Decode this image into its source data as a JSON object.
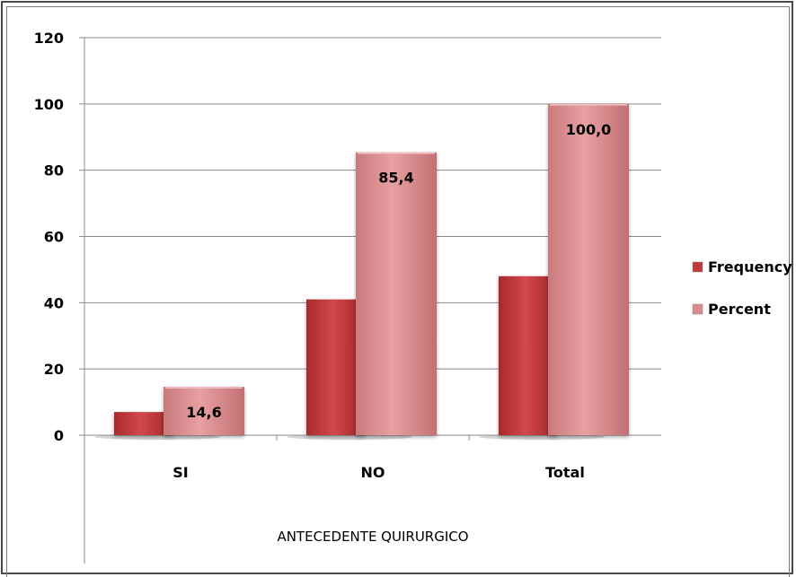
{
  "chart_data": {
    "type": "bar",
    "title": "",
    "xlabel": "ANTECEDENTE QUIRURGICO",
    "ylabel": "",
    "categories": [
      "SI",
      "NO",
      "Total"
    ],
    "series": [
      {
        "name": "Frequency",
        "values": [
          7,
          41,
          48
        ],
        "color": "#c0393b",
        "labels": [
          "",
          "",
          ""
        ]
      },
      {
        "name": "Percent",
        "values": [
          14.6,
          85.4,
          100.0
        ],
        "color": "#d98b8e",
        "labels": [
          "14,6",
          "85,4",
          "100,0"
        ]
      }
    ],
    "ylim": [
      0,
      120
    ],
    "yticks": [
      0,
      20,
      40,
      60,
      80,
      100,
      120
    ],
    "grid": true,
    "legend_position": "right"
  }
}
